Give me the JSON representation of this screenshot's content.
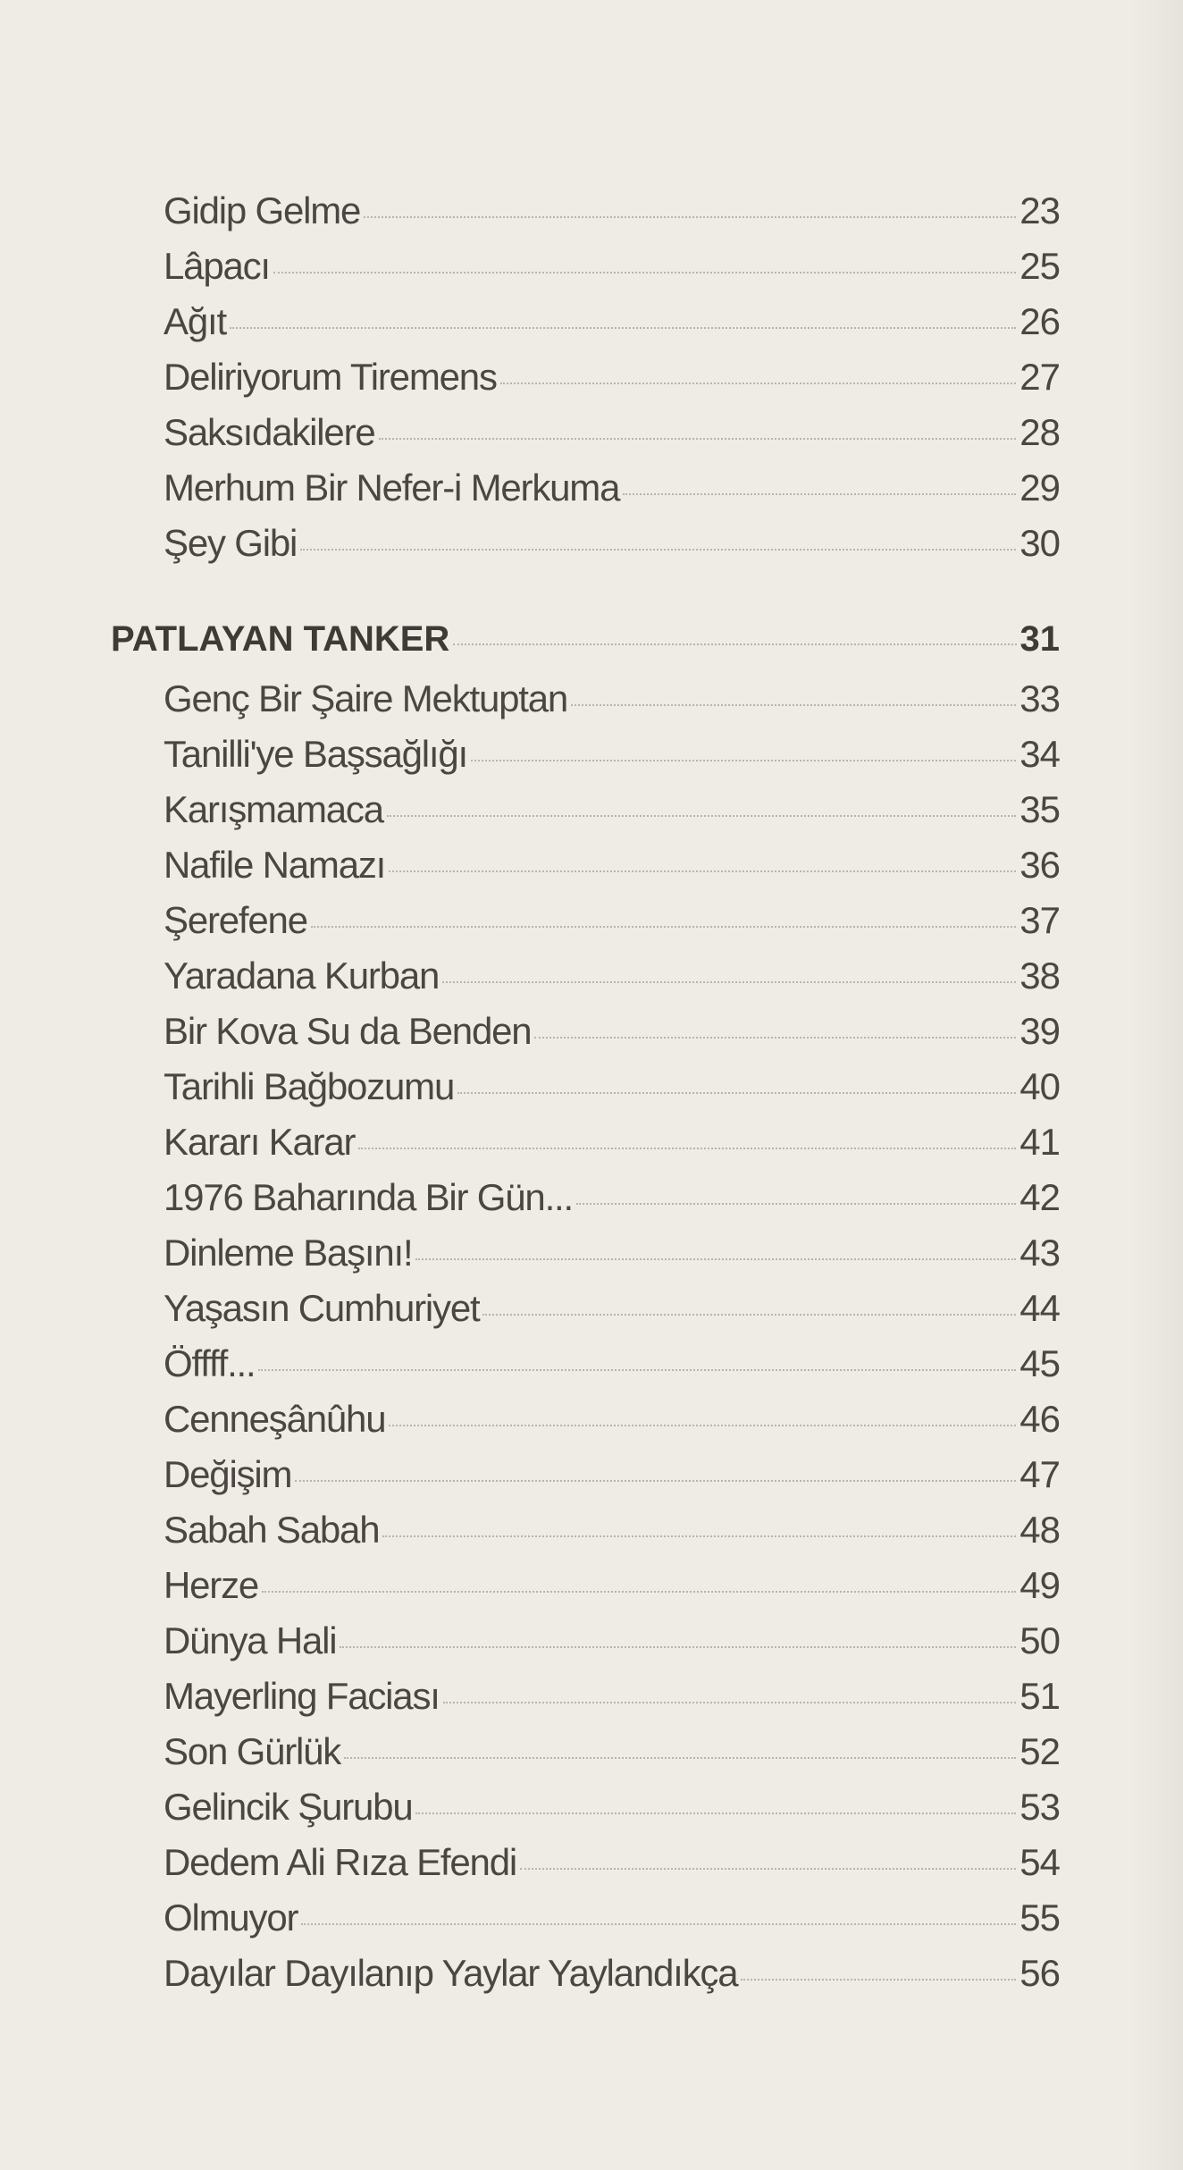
{
  "toc": {
    "pre_entries": [
      {
        "title": "Gidip Gelme",
        "page": "23"
      },
      {
        "title": "Lâpacı",
        "page": "25"
      },
      {
        "title": "Ağıt",
        "page": "26"
      },
      {
        "title": "Deliriyorum Tiremens",
        "page": "27"
      },
      {
        "title": "Saksıdakilere",
        "page": "28"
      },
      {
        "title": "Merhum Bir Nefer-i Merkuma",
        "page": "29"
      },
      {
        "title": "Şey Gibi",
        "page": "30"
      }
    ],
    "section": {
      "title": "PATLAYAN TANKER",
      "page": "31"
    },
    "entries": [
      {
        "title": "Genç Bir Şaire Mektuptan",
        "page": "33"
      },
      {
        "title": "Tanilli'ye Başsağlığı",
        "page": "34"
      },
      {
        "title": "Karışmamaca",
        "page": "35"
      },
      {
        "title": "Nafile Namazı",
        "page": "36"
      },
      {
        "title": "Şerefene",
        "page": "37"
      },
      {
        "title": "Yaradana Kurban",
        "page": "38"
      },
      {
        "title": "Bir Kova Su da Benden",
        "page": "39"
      },
      {
        "title": "Tarihli Bağbozumu",
        "page": "40"
      },
      {
        "title": "Kararı Karar",
        "page": "41"
      },
      {
        "title": "1976 Baharında Bir Gün...",
        "page": "42"
      },
      {
        "title": "Dinleme Başını!",
        "page": "43"
      },
      {
        "title": "Yaşasın Cumhuriyet",
        "page": "44"
      },
      {
        "title": "Öffff...",
        "page": "45"
      },
      {
        "title": "Cenneşânûhu",
        "page": "46"
      },
      {
        "title": "Değişim",
        "page": "47"
      },
      {
        "title": "Sabah Sabah",
        "page": "48"
      },
      {
        "title": "Herze",
        "page": "49"
      },
      {
        "title": "Dünya Hali",
        "page": "50"
      },
      {
        "title": "Mayerling Faciası",
        "page": "51"
      },
      {
        "title": "Son Gürlük",
        "page": "52"
      },
      {
        "title": "Gelincik Şurubu",
        "page": "53"
      },
      {
        "title": "Dedem Ali Rıza Efendi",
        "page": "54"
      },
      {
        "title": "Olmuyor",
        "page": "55"
      },
      {
        "title": "Dayılar Dayılanıp Yaylar Yaylandıkça",
        "page": "56"
      }
    ]
  }
}
